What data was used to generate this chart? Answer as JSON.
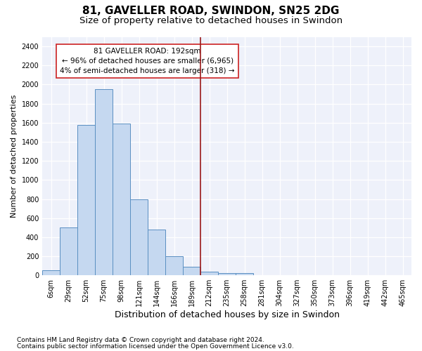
{
  "title1": "81, GAVELLER ROAD, SWINDON, SN25 2DG",
  "title2": "Size of property relative to detached houses in Swindon",
  "xlabel": "Distribution of detached houses by size in Swindon",
  "ylabel": "Number of detached properties",
  "bar_labels": [
    "6sqm",
    "29sqm",
    "52sqm",
    "75sqm",
    "98sqm",
    "121sqm",
    "144sqm",
    "166sqm",
    "189sqm",
    "212sqm",
    "235sqm",
    "258sqm",
    "281sqm",
    "304sqm",
    "327sqm",
    "350sqm",
    "373sqm",
    "396sqm",
    "419sqm",
    "442sqm",
    "465sqm"
  ],
  "bar_values": [
    55,
    500,
    1580,
    1950,
    1590,
    800,
    480,
    200,
    90,
    35,
    25,
    20,
    0,
    0,
    0,
    0,
    0,
    0,
    0,
    0,
    0
  ],
  "bar_color": "#c5d8f0",
  "bar_edgecolor": "#5a8fc2",
  "vline_index": 8,
  "vline_color": "#9b1a1a",
  "annotation_text": "81 GAVELLER ROAD: 192sqm\n← 96% of detached houses are smaller (6,965)\n4% of semi-detached houses are larger (318) →",
  "ylim": [
    0,
    2500
  ],
  "yticks": [
    0,
    200,
    400,
    600,
    800,
    1000,
    1200,
    1400,
    1600,
    1800,
    2000,
    2200,
    2400
  ],
  "footnote1": "Contains HM Land Registry data © Crown copyright and database right 2024.",
  "footnote2": "Contains public sector information licensed under the Open Government Licence v3.0.",
  "background_color": "#eef1fa",
  "grid_color": "#ffffff",
  "title1_fontsize": 11,
  "title2_fontsize": 9.5,
  "xlabel_fontsize": 9,
  "ylabel_fontsize": 8,
  "tick_fontsize": 7,
  "annotation_fontsize": 7.5,
  "footnote_fontsize": 6.5
}
